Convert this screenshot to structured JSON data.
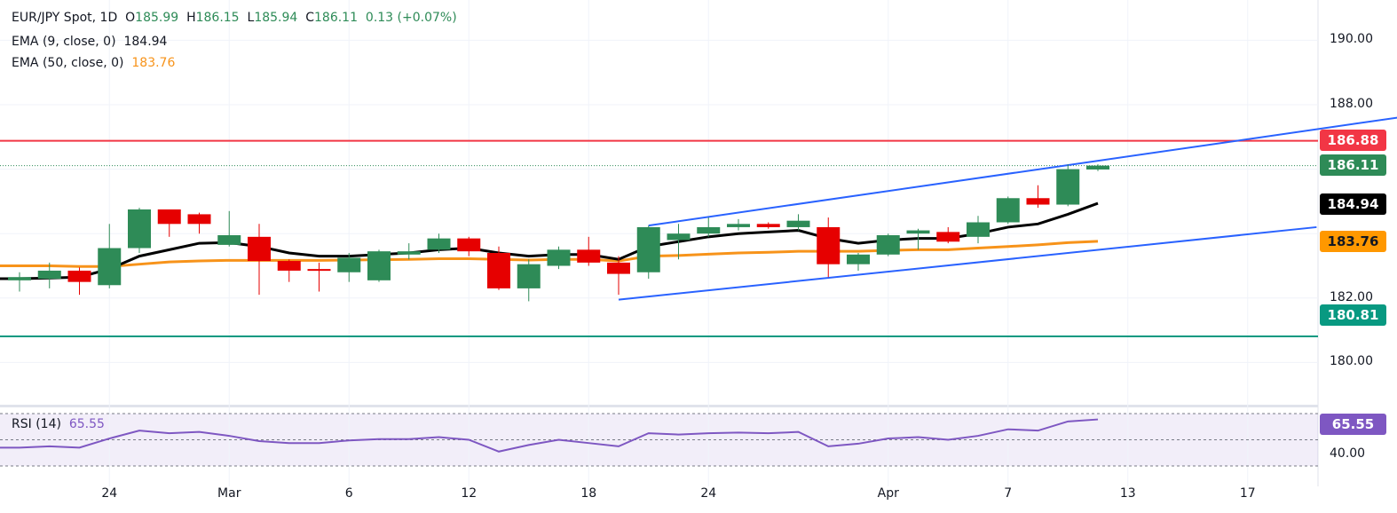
{
  "legend": {
    "symbol": "EUR/JPY Spot, 1D",
    "o_label": "O",
    "o": "185.99",
    "h_label": "H",
    "h": "186.15",
    "l_label": "L",
    "l": "185.94",
    "c_label": "C",
    "c": "186.11",
    "change": "0.13 (+0.07%)",
    "ema9_label": "EMA (9, close, 0)",
    "ema9": "184.94",
    "ema50_label": "EMA (50, close, 0)",
    "ema50": "183.76"
  },
  "rsi": {
    "label": "RSI (14)",
    "value": "65.55",
    "axis_label": "40.00"
  },
  "badges": {
    "resistance": "186.88",
    "last": "186.11",
    "ema9": "184.94",
    "ema50": "183.76",
    "support": "180.81"
  },
  "colors": {
    "up": "#2e8b57",
    "down": "#e60000",
    "ema9": "#000000",
    "ema50": "#f7931a",
    "channel": "#2962ff",
    "resistance": "#f23645",
    "support": "#089981",
    "rsi": "#7e57c2"
  },
  "chart_data": {
    "type": "candlestick",
    "ylim": [
      178.8,
      191.2
    ],
    "y_ticks": [
      "190.00",
      "188.00",
      "182.00",
      "180.00"
    ],
    "x_ticks": [
      {
        "label": "24",
        "i": 3
      },
      {
        "label": "Mar",
        "i": 7
      },
      {
        "label": "6",
        "i": 11
      },
      {
        "label": "12",
        "i": 15
      },
      {
        "label": "18",
        "i": 19
      },
      {
        "label": "24",
        "i": 23
      },
      {
        "label": "Apr",
        "i": 29
      },
      {
        "label": "7",
        "i": 33
      },
      {
        "label": "13",
        "i": 37
      },
      {
        "label": "17",
        "i": 41
      }
    ],
    "ohlc": [
      [
        182.55,
        182.8,
        182.2,
        182.65
      ],
      [
        182.6,
        183.1,
        182.3,
        182.85
      ],
      [
        182.85,
        182.95,
        182.1,
        182.5
      ],
      [
        182.4,
        184.3,
        182.3,
        183.55
      ],
      [
        183.55,
        184.8,
        183.4,
        184.75
      ],
      [
        184.75,
        184.75,
        183.9,
        184.3
      ],
      [
        184.6,
        184.65,
        184.0,
        184.3
      ],
      [
        183.65,
        184.7,
        183.6,
        183.95
      ],
      [
        183.9,
        184.3,
        182.1,
        183.15
      ],
      [
        183.15,
        183.2,
        182.5,
        182.85
      ],
      [
        182.9,
        183.1,
        182.2,
        182.85
      ],
      [
        182.8,
        183.4,
        182.5,
        183.25
      ],
      [
        182.55,
        183.5,
        182.5,
        183.45
      ],
      [
        183.35,
        183.7,
        183.2,
        183.45
      ],
      [
        183.5,
        184.0,
        183.4,
        183.85
      ],
      [
        183.85,
        183.9,
        183.3,
        183.45
      ],
      [
        183.4,
        183.6,
        182.25,
        182.3
      ],
      [
        182.3,
        183.2,
        181.9,
        183.05
      ],
      [
        183.0,
        183.6,
        182.9,
        183.5
      ],
      [
        183.5,
        183.9,
        183.0,
        183.1
      ],
      [
        183.1,
        183.3,
        182.1,
        182.75
      ],
      [
        182.8,
        184.25,
        182.6,
        184.2
      ],
      [
        183.8,
        184.3,
        183.2,
        184.0
      ],
      [
        184.0,
        184.5,
        183.9,
        184.2
      ],
      [
        184.2,
        184.45,
        184.1,
        184.3
      ],
      [
        184.3,
        184.35,
        184.15,
        184.2
      ],
      [
        184.2,
        184.6,
        184.1,
        184.4
      ],
      [
        184.2,
        184.5,
        182.65,
        183.05
      ],
      [
        183.05,
        183.4,
        182.85,
        183.35
      ],
      [
        183.35,
        184.0,
        183.3,
        183.95
      ],
      [
        184.0,
        184.15,
        183.5,
        184.1
      ],
      [
        184.05,
        184.2,
        183.7,
        183.75
      ],
      [
        183.9,
        184.55,
        183.7,
        184.35
      ],
      [
        184.35,
        185.15,
        184.3,
        185.1
      ],
      [
        185.1,
        185.5,
        184.8,
        184.9
      ],
      [
        184.9,
        186.15,
        184.85,
        186.0
      ],
      [
        185.99,
        186.15,
        185.94,
        186.11
      ]
    ],
    "ema9": [
      182.6,
      182.62,
      182.65,
      182.9,
      183.3,
      183.5,
      183.7,
      183.72,
      183.6,
      183.4,
      183.3,
      183.3,
      183.35,
      183.4,
      183.5,
      183.55,
      183.4,
      183.3,
      183.35,
      183.35,
      183.2,
      183.6,
      183.75,
      183.9,
      184.0,
      184.05,
      184.1,
      183.85,
      183.7,
      183.8,
      183.85,
      183.85,
      184.0,
      184.2,
      184.3,
      184.6,
      184.94
    ],
    "ema50": [
      183.0,
      183.0,
      182.98,
      182.98,
      183.05,
      183.12,
      183.15,
      183.17,
      183.17,
      183.17,
      183.17,
      183.18,
      183.19,
      183.2,
      183.22,
      183.22,
      183.2,
      183.18,
      183.2,
      183.2,
      183.15,
      183.3,
      183.32,
      183.36,
      183.4,
      183.42,
      183.45,
      183.45,
      183.45,
      183.48,
      183.5,
      183.5,
      183.55,
      183.6,
      183.65,
      183.72,
      183.76
    ],
    "rsi": [
      44,
      45,
      44,
      51,
      57,
      55,
      56,
      53,
      49,
      47.5,
      47.5,
      49.5,
      50.5,
      50.5,
      52,
      50,
      41,
      46,
      50,
      47.5,
      45,
      55,
      54,
      55,
      55.5,
      55,
      56,
      45,
      47,
      51,
      52,
      50,
      53,
      58,
      57,
      64,
      65.55
    ],
    "rsi_levels": [
      70,
      50,
      30
    ],
    "rsi_ylim": [
      20,
      75
    ],
    "channel_upper": [
      [
        21,
        184.25
      ],
      [
        46,
        187.6
      ]
    ],
    "channel_lower": [
      [
        20,
        181.95
      ],
      [
        43.3,
        184.2
      ]
    ],
    "resistance": 186.88,
    "support": 180.81,
    "last": 186.11
  }
}
